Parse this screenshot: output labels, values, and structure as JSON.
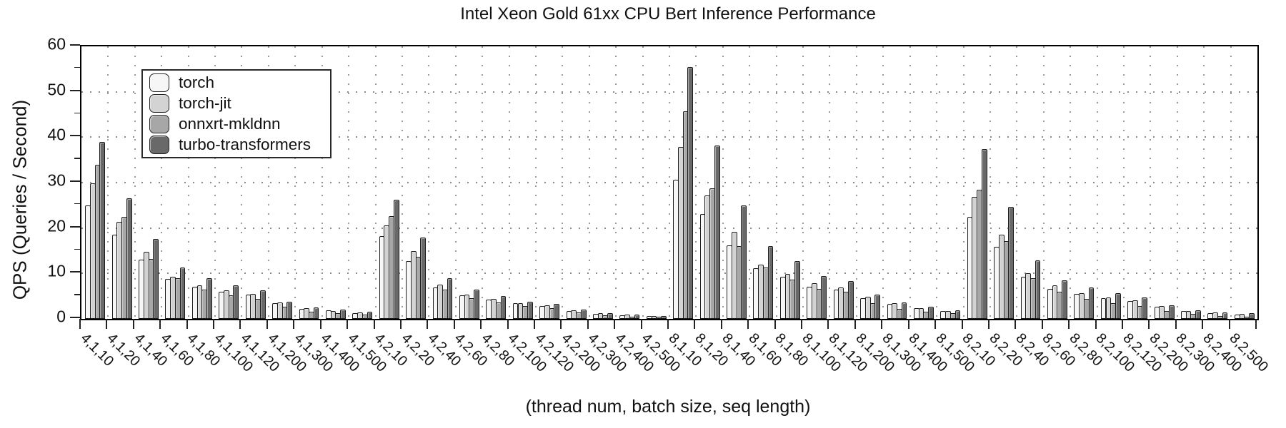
{
  "chart_data": {
    "type": "bar",
    "title": "Intel Xeon Gold 61xx CPU Bert Inference Performance",
    "xlabel": "(thread num, batch size, seq length)",
    "ylabel": "QPS (Queries / Second)",
    "ylim": [
      0,
      60
    ],
    "yticks": [
      0,
      10,
      20,
      30,
      40,
      50,
      60
    ],
    "grid": "dotted",
    "legend_position": "upper-left",
    "categories": [
      "4,1,10",
      "4,1,20",
      "4,1,40",
      "4,1,60",
      "4,1,80",
      "4,1,100",
      "4,1,120",
      "4,1,200",
      "4,1,300",
      "4,1,400",
      "4,1,500",
      "4,2,10",
      "4,2,20",
      "4,2,40",
      "4,2,60",
      "4,2,80",
      "4,2,100",
      "4,2,120",
      "4,2,200",
      "4,2,300",
      "4,2,400",
      "4,2,500",
      "8,1,10",
      "8,1,20",
      "8,1,40",
      "8,1,60",
      "8,1,80",
      "8,1,100",
      "8,1,120",
      "8,1,200",
      "8,1,300",
      "8,1,400",
      "8,1,500",
      "8,2,10",
      "8,2,20",
      "8,2,40",
      "8,2,60",
      "8,2,80",
      "8,2,100",
      "8,2,120",
      "8,2,200",
      "8,2,300",
      "8,2,400",
      "8,2,500"
    ],
    "series": [
      {
        "name": "torch",
        "color": "#f6f6f6",
        "values": [
          25.0,
          18.6,
          13.1,
          8.8,
          7.1,
          6.0,
          5.3,
          3.4,
          2.2,
          1.9,
          1.3,
          18.3,
          12.8,
          6.9,
          5.2,
          4.2,
          3.5,
          2.9,
          1.8,
          1.1,
          0.8,
          0.6,
          30.6,
          23.1,
          16.2,
          11.2,
          9.2,
          7.1,
          6.4,
          4.5,
          3.3,
          2.4,
          1.8,
          22.4,
          15.9,
          9.2,
          6.6,
          5.5,
          4.5,
          4.0,
          2.6,
          1.7,
          1.25,
          0.95
        ]
      },
      {
        "name": "torch-jit",
        "color": "#d3d3d3",
        "values": [
          29.9,
          21.3,
          14.8,
          9.2,
          7.4,
          6.3,
          5.5,
          3.6,
          2.4,
          1.7,
          1.4,
          20.6,
          14.9,
          7.5,
          5.4,
          4.4,
          3.5,
          3.0,
          1.9,
          1.2,
          0.9,
          0.7,
          37.8,
          27.2,
          19.1,
          12.0,
          9.9,
          7.8,
          6.9,
          4.9,
          3.4,
          2.4,
          1.8,
          26.8,
          18.6,
          10.0,
          7.4,
          5.6,
          4.7,
          4.1,
          2.8,
          1.8,
          1.35,
          1.05
        ]
      },
      {
        "name": "onnxrt-mkldnn",
        "color": "#a7a7a7",
        "values": [
          34.0,
          22.4,
          13.2,
          9.0,
          6.4,
          5.2,
          4.4,
          2.6,
          1.6,
          1.2,
          0.9,
          22.6,
          13.7,
          6.4,
          4.5,
          3.6,
          2.8,
          2.4,
          1.4,
          0.8,
          0.5,
          0.4,
          45.7,
          28.8,
          16.1,
          11.3,
          8.7,
          6.6,
          5.9,
          3.5,
          2.2,
          1.5,
          1.2,
          28.5,
          17.2,
          8.9,
          6.0,
          4.4,
          3.5,
          2.9,
          1.7,
          1.05,
          0.6,
          0.4
        ]
      },
      {
        "name": "turbo-transformers",
        "color": "#696969",
        "values": [
          39.0,
          26.6,
          17.6,
          11.3,
          8.9,
          7.4,
          6.3,
          3.8,
          2.5,
          2.0,
          1.5,
          26.2,
          17.9,
          9.0,
          6.4,
          5.0,
          3.8,
          3.3,
          2.0,
          1.3,
          1.0,
          0.7,
          55.4,
          38.1,
          24.9,
          16.1,
          12.7,
          9.5,
          8.4,
          5.3,
          3.6,
          2.6,
          1.9,
          37.4,
          24.6,
          12.9,
          8.5,
          6.9,
          5.6,
          4.7,
          3.0,
          1.9,
          1.45,
          1.2
        ]
      }
    ]
  },
  "colors": {
    "background": "#ffffff",
    "axis": "#000000",
    "grid_dots": "#8a8a8a",
    "bar_edge": "#1a1a1a"
  }
}
